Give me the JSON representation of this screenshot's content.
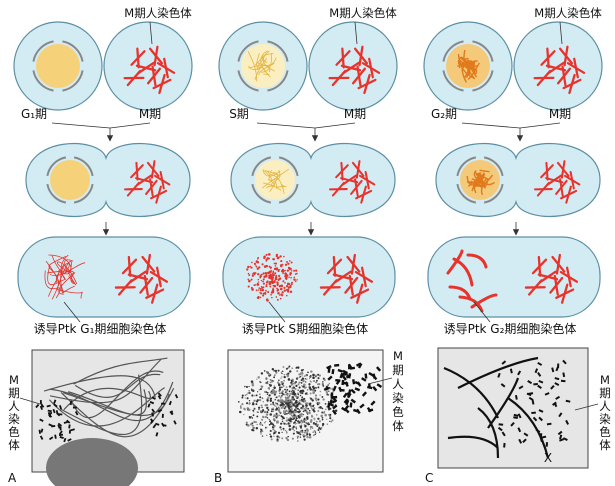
{
  "colors": {
    "cytoplasm": "#d3ecf3",
    "cell_outline": "#5c8fa3",
    "chromosome": "#e8322c",
    "g1_nucleus": "#f5d27a",
    "s_nucleus": "#fbeec0",
    "s_threads": "#e3b542",
    "g2_nucleus": "#f4c97a",
    "g2_threads": "#e07a1c",
    "arrow": "#333333"
  },
  "columns": [
    {
      "id": "A",
      "panel_letter": "A",
      "interphase_label": "G₁期",
      "m_phase_label": "M期",
      "m_chromosome_label": "M期人染色体",
      "induced_label": "诱导Ptk G₁期细胞染色体",
      "micrograph_m_label": "M期人染色体",
      "nucleus_icon": "g1-nucleus-icon",
      "induced_pattern": "thin-tangled-threads"
    },
    {
      "id": "B",
      "panel_letter": "B",
      "interphase_label": "S期",
      "m_phase_label": "M期",
      "m_chromosome_label": "M期人染色体",
      "induced_label": "诱导Ptk S期细胞染色体",
      "micrograph_m_label": "M期人染色体",
      "nucleus_icon": "s-nucleus-icon",
      "induced_pattern": "pulverized-fragments"
    },
    {
      "id": "C",
      "panel_letter": "C",
      "interphase_label": "G₂期",
      "m_phase_label": "M期",
      "m_chromosome_label": "M期人染色体",
      "induced_label": "诱导Ptk G₂期细胞染色体",
      "micrograph_m_label": "M期人染色体",
      "micrograph_mark": "X",
      "nucleus_icon": "g2-nucleus-icon",
      "induced_pattern": "long-single-chromatids"
    }
  ]
}
